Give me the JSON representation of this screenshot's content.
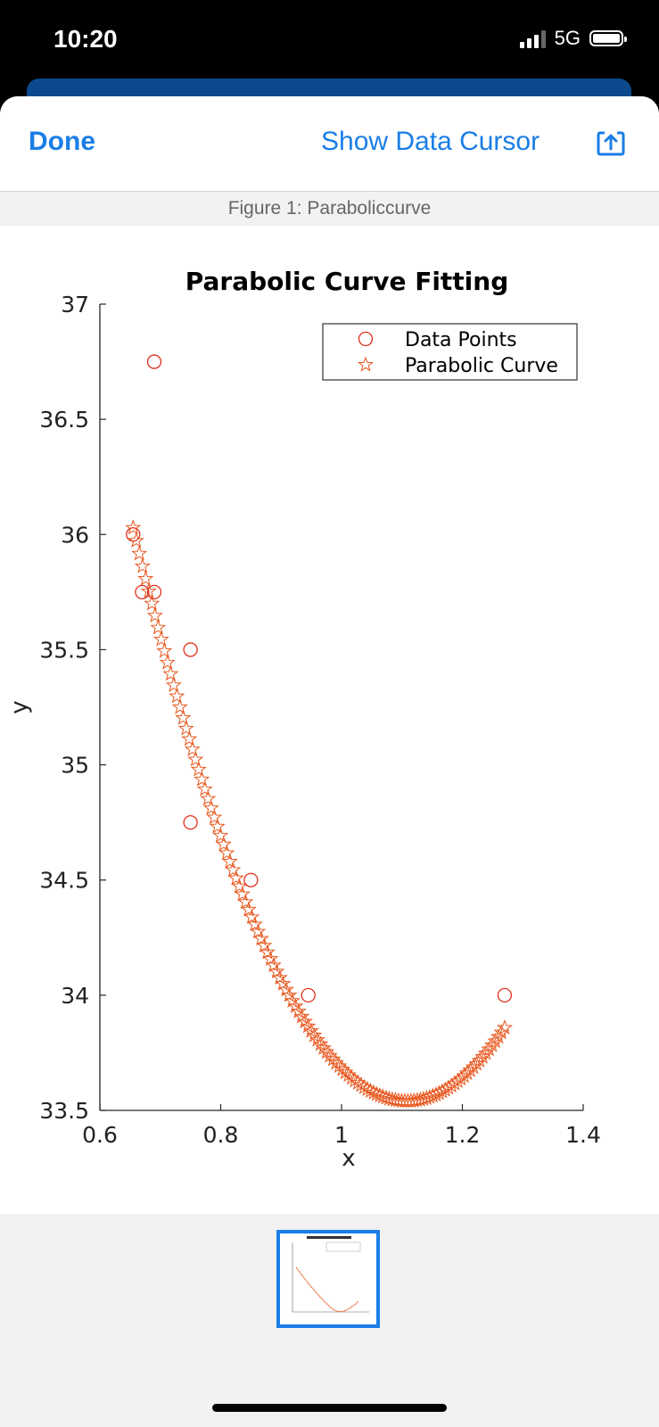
{
  "status": {
    "time": "10:20",
    "network": "5G"
  },
  "nav": {
    "done_label": "Done",
    "cursor_label": "Show Data Cursor"
  },
  "figure_caption": "Figure 1: Paraboliccurve",
  "colors": {
    "accent": "#1a7ee6",
    "marker": "#e0311e",
    "curve": "#e8561d"
  },
  "chart_data": {
    "type": "scatter",
    "title": "Parabolic Curve Fitting",
    "xlabel": "x",
    "ylabel": "y",
    "xlim": [
      0.6,
      1.4
    ],
    "ylim": [
      33.5,
      37
    ],
    "xticks": [
      "0.6",
      "0.8",
      "1",
      "1.2",
      "1.4"
    ],
    "yticks": [
      "33.5",
      "34",
      "34.5",
      "35",
      "35.5",
      "36",
      "36.5",
      "37"
    ],
    "legend_position": "top-right",
    "series": [
      {
        "name": "Data Points",
        "marker": "circle",
        "points": [
          [
            0.655,
            36.0
          ],
          [
            0.69,
            36.75
          ],
          [
            0.67,
            35.75
          ],
          [
            0.69,
            35.75
          ],
          [
            0.75,
            35.5
          ],
          [
            0.75,
            34.75
          ],
          [
            0.85,
            34.5
          ],
          [
            0.945,
            34.0
          ],
          [
            1.27,
            34.0
          ]
        ]
      },
      {
        "name": "Parabolic Curve",
        "marker": "star",
        "fit": {
          "a": 12.13,
          "vertex_x": 1.108,
          "vertex_y": 33.54,
          "x_start": 0.655,
          "x_end": 1.27,
          "count": 120
        }
      }
    ]
  }
}
